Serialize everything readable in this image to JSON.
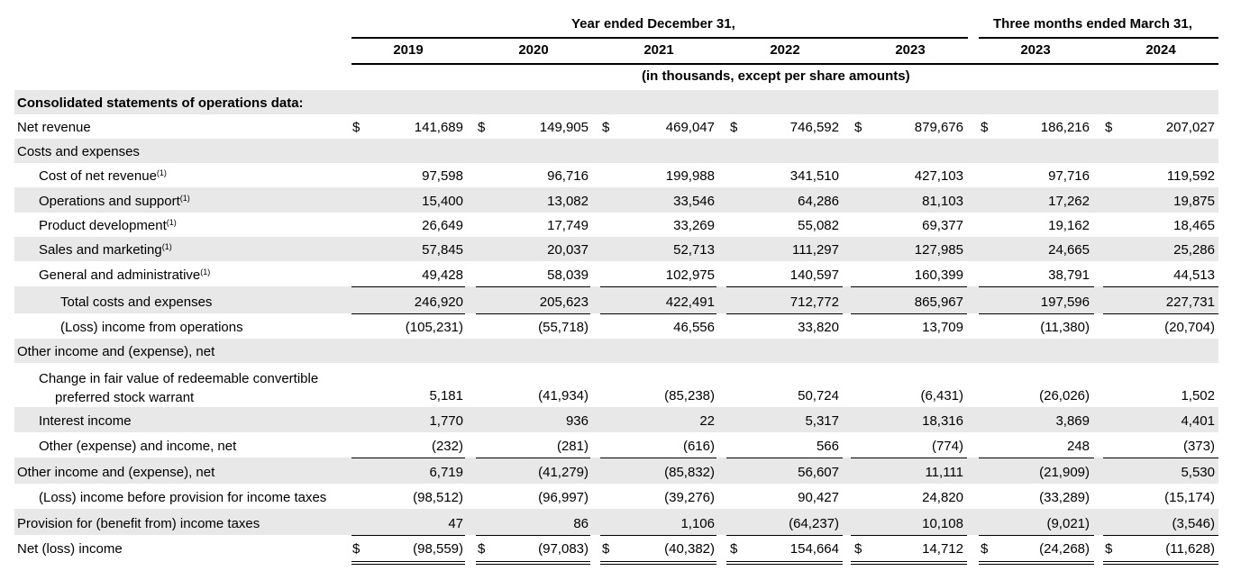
{
  "header": {
    "group_year": "Year ended December 31,",
    "group_quarter": "Three months ended March 31,",
    "columns": [
      "2019",
      "2020",
      "2021",
      "2022",
      "2023",
      "2023",
      "2024"
    ],
    "units": "(in thousands, except per share amounts)"
  },
  "currency_symbol": "$",
  "footnote_marker": "(1)",
  "rows": [
    {
      "label": "Consolidated statements of operations data:",
      "bold": true,
      "indent": 0,
      "values": []
    },
    {
      "label": "Net revenue",
      "indent": 0,
      "dollar": true,
      "values": [
        "141,689",
        "149,905",
        "469,047",
        "746,592",
        "879,676",
        "186,216",
        "207,027"
      ]
    },
    {
      "label": "Costs and expenses",
      "indent": 0,
      "values": []
    },
    {
      "label": "Cost of net revenue",
      "indent": 1,
      "footnote": true,
      "values": [
        "97,598",
        "96,716",
        "199,988",
        "341,510",
        "427,103",
        "97,716",
        "119,592"
      ]
    },
    {
      "label": "Operations and support",
      "indent": 1,
      "footnote": true,
      "values": [
        "15,400",
        "13,082",
        "33,546",
        "64,286",
        "81,103",
        "17,262",
        "19,875"
      ]
    },
    {
      "label": "Product development",
      "indent": 1,
      "footnote": true,
      "values": [
        "26,649",
        "17,749",
        "33,269",
        "55,082",
        "69,377",
        "19,162",
        "18,465"
      ]
    },
    {
      "label": "Sales and marketing",
      "indent": 1,
      "footnote": true,
      "values": [
        "57,845",
        "20,037",
        "52,713",
        "111,297",
        "127,985",
        "24,665",
        "25,286"
      ]
    },
    {
      "label": "General and administrative",
      "indent": 1,
      "footnote": true,
      "values": [
        "49,428",
        "58,039",
        "102,975",
        "140,597",
        "160,399",
        "38,791",
        "44,513"
      ]
    },
    {
      "label": "Total costs and expenses",
      "indent": 2,
      "rule_above": true,
      "values": [
        "246,920",
        "205,623",
        "422,491",
        "712,772",
        "865,967",
        "197,596",
        "227,731"
      ]
    },
    {
      "label": "(Loss) income from operations",
      "indent": 2,
      "rule_above": true,
      "values": [
        "(105,231)",
        "(55,718)",
        "46,556",
        "33,820",
        "13,709",
        "(11,380)",
        "(20,704)"
      ]
    },
    {
      "label": "Other income and (expense), net",
      "indent": 0,
      "values": []
    },
    {
      "label": "Change in fair value of redeemable convertible",
      "label2": "preferred stock warrant",
      "indent": 1,
      "tall": true,
      "values": [
        "5,181",
        "(41,934)",
        "(85,238)",
        "50,724",
        "(6,431)",
        "(26,026)",
        "1,502"
      ]
    },
    {
      "label": "Interest income",
      "indent": 1,
      "values": [
        "1,770",
        "936",
        "22",
        "5,317",
        "18,316",
        "3,869",
        "4,401"
      ]
    },
    {
      "label": "Other (expense) and income, net",
      "indent": 1,
      "values": [
        "(232)",
        "(281)",
        "(616)",
        "566",
        "(774)",
        "248",
        "(373)"
      ]
    },
    {
      "label": "Other income and (expense), net",
      "indent": 0,
      "rule_above": true,
      "values": [
        "6,719",
        "(41,279)",
        "(85,832)",
        "56,607",
        "11,111",
        "(21,909)",
        "5,530"
      ]
    },
    {
      "label": "(Loss) income before provision for income taxes",
      "indent": 1,
      "values": [
        "(98,512)",
        "(96,997)",
        "(39,276)",
        "90,427",
        "24,820",
        "(33,289)",
        "(15,174)"
      ]
    },
    {
      "label": "Provision for (benefit from) income taxes",
      "indent": 0,
      "values": [
        "47",
        "86",
        "1,106",
        "(64,237)",
        "10,108",
        "(9,021)",
        "(3,546)"
      ]
    },
    {
      "label": "Net (loss) income",
      "indent": 0,
      "dollar": true,
      "rule_above": true,
      "double_below": true,
      "values": [
        "(98,559)",
        "(97,083)",
        "(40,382)",
        "154,664",
        "14,712",
        "(24,268)",
        "(11,628)"
      ]
    }
  ]
}
